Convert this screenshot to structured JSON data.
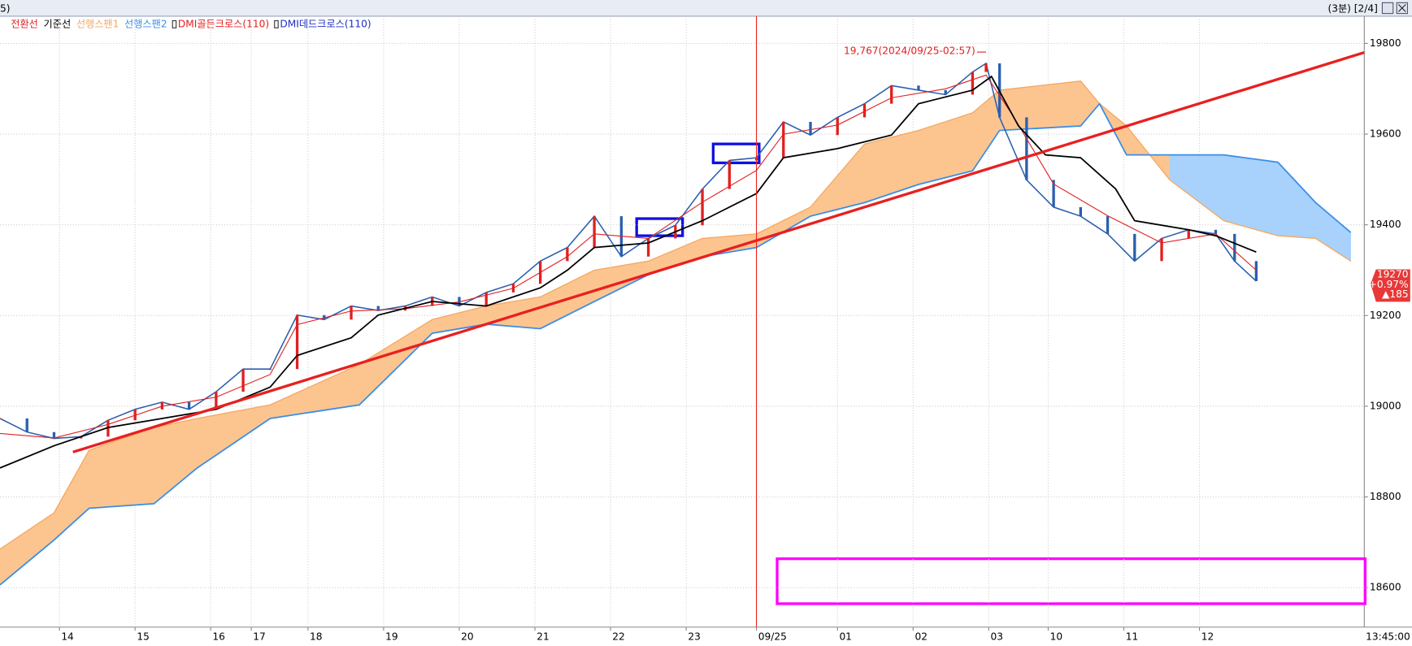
{
  "chart_data": {
    "type": "ichimoku",
    "header_left": "5)",
    "header_right": "(3분) [2/4]",
    "time_label": "13:45:00",
    "indicators": [
      {
        "name": "DMI골든크로스(110)",
        "color": "#e02020"
      },
      {
        "name": "DMI데드크로스(110)",
        "color": "#2030c0"
      }
    ],
    "xlim": [
      0,
      505
    ],
    "ylim": [
      18513,
      19860
    ],
    "yticks": [
      18600,
      18800,
      19000,
      19200,
      19400,
      19600,
      19800
    ],
    "xticks": [
      {
        "value": 22,
        "label": "14"
      },
      {
        "value": 50,
        "label": "15"
      },
      {
        "value": 78,
        "label": "16"
      },
      {
        "value": 93,
        "label": "17"
      },
      {
        "value": 114,
        "label": "18"
      },
      {
        "value": 142,
        "label": "19"
      },
      {
        "value": 170,
        "label": "20"
      },
      {
        "value": 198,
        "label": "21"
      },
      {
        "value": 226,
        "label": "22"
      },
      {
        "value": 254,
        "label": "23"
      },
      {
        "value": 280,
        "label": "09/25"
      },
      {
        "value": 310,
        "label": "01"
      },
      {
        "value": 338,
        "label": "02"
      },
      {
        "value": 366,
        "label": "03"
      },
      {
        "value": 388,
        "label": "10"
      },
      {
        "value": 416,
        "label": "11"
      },
      {
        "value": 444,
        "label": "12"
      }
    ],
    "grid": true,
    "price": {
      "color": "#2a5fae",
      "x": [
        0,
        10,
        20,
        30,
        40,
        50,
        60,
        70,
        80,
        90,
        100,
        110,
        120,
        130,
        140,
        150,
        160,
        170,
        180,
        190,
        200,
        210,
        220,
        230,
        240,
        250,
        260,
        270,
        280,
        290,
        300,
        310,
        320,
        330,
        340,
        350,
        360,
        365,
        370,
        380,
        390,
        400,
        410,
        420,
        430,
        440,
        450,
        457,
        465
      ],
      "values": [
        18973,
        18943,
        18929,
        18933,
        18969,
        18993,
        19009,
        18993,
        19032,
        19082,
        19082,
        19201,
        19191,
        19221,
        19211,
        19221,
        19241,
        19221,
        19251,
        19270,
        19320,
        19350,
        19419,
        19330,
        19370,
        19399,
        19479,
        19542,
        19548,
        19627,
        19598,
        19637,
        19667,
        19707,
        19697,
        19687,
        19737,
        19756,
        19637,
        19499,
        19439,
        19419,
        19380,
        19320,
        19370,
        19389,
        19380,
        19320,
        19276
      ]
    },
    "series": [
      {
        "name": "전환선",
        "color": "#e02020",
        "x": [
          0,
          20,
          40,
          60,
          80,
          100,
          110,
          130,
          150,
          170,
          190,
          210,
          220,
          240,
          260,
          280,
          290,
          310,
          330,
          350,
          365,
          375,
          390,
          410,
          430,
          450,
          465
        ],
        "values": [
          18940,
          18930,
          18960,
          19000,
          19020,
          19070,
          19180,
          19210,
          19215,
          19230,
          19260,
          19330,
          19380,
          19370,
          19450,
          19520,
          19600,
          19620,
          19680,
          19700,
          19730,
          19640,
          19490,
          19420,
          19360,
          19380,
          19300
        ]
      },
      {
        "name": "기준선",
        "color": "#000000",
        "x": [
          0,
          20,
          40,
          60,
          80,
          100,
          110,
          130,
          140,
          160,
          180,
          200,
          210,
          220,
          240,
          260,
          280,
          290,
          310,
          330,
          340,
          360,
          367,
          377,
          387,
          400,
          413,
          420,
          440,
          450,
          465
        ],
        "values": [
          18864,
          18913,
          18953,
          18973,
          18993,
          19042,
          19112,
          19151,
          19201,
          19231,
          19221,
          19261,
          19300,
          19350,
          19360,
          19409,
          19469,
          19548,
          19568,
          19598,
          19667,
          19697,
          19727,
          19618,
          19554,
          19548,
          19479,
          19409,
          19389,
          19376,
          19340
        ]
      },
      {
        "name": "선행스팬1",
        "color": "#f5a860",
        "x": [
          0,
          20,
          33,
          57,
          73,
          100,
          133,
          160,
          180,
          200,
          220,
          240,
          260,
          280,
          300,
          320,
          340,
          360,
          370,
          400,
          407,
          417,
          433,
          453,
          473,
          487,
          500
        ],
        "values": [
          18685,
          18765,
          18903,
          18953,
          18973,
          19003,
          19092,
          19191,
          19221,
          19241,
          19300,
          19320,
          19370,
          19380,
          19439,
          19578,
          19608,
          19647,
          19697,
          19717,
          19667,
          19618,
          19499,
          19409,
          19376,
          19370,
          19320
        ]
      },
      {
        "name": "선행스팬2",
        "color": "#3a8ee6",
        "x": [
          0,
          20,
          33,
          57,
          73,
          100,
          133,
          160,
          180,
          200,
          220,
          240,
          260,
          280,
          300,
          320,
          340,
          360,
          370,
          400,
          407,
          417,
          433,
          453,
          473,
          487,
          500
        ],
        "values": [
          18606,
          18705,
          18775,
          18785,
          18864,
          18973,
          19003,
          19161,
          19181,
          19171,
          19231,
          19290,
          19330,
          19350,
          19419,
          19449,
          19489,
          19519,
          19608,
          19618,
          19667,
          19554,
          19554,
          19554,
          19538,
          19449,
          19383
        ]
      }
    ],
    "trendline": {
      "color": "#e82020",
      "x": [
        27,
        505
      ],
      "values": [
        18899,
        19780
      ]
    },
    "max_annotation": {
      "x": 365,
      "value": 19767,
      "label": "19,767(2024/09/25-02:57)"
    },
    "price_tag": {
      "value": 19270,
      "change": "+0.97%",
      "diff": "▲185"
    }
  }
}
